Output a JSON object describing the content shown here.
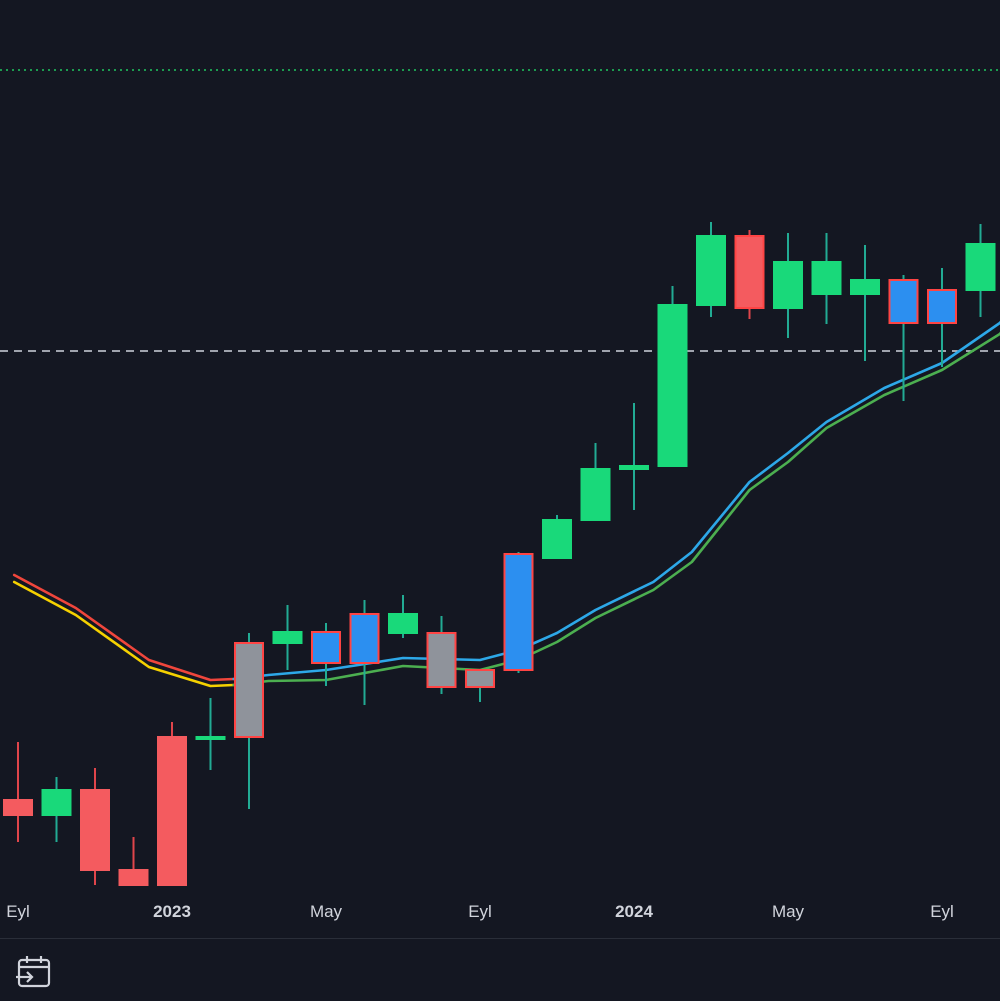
{
  "chart_data": {
    "type": "candlestick",
    "x_tick_labels": [
      "Eyl",
      "2023",
      "May",
      "Eyl",
      "2024",
      "May",
      "Eyl"
    ],
    "x_tick_index": [
      0,
      4,
      8,
      12,
      16,
      20,
      24
    ],
    "y_range": [
      0,
      1000
    ],
    "horizontal_lines": [
      {
        "name": "dotted-level",
        "value": 930,
        "style": "dotted",
        "color": "#1ec860"
      },
      {
        "name": "dashed-level",
        "value": 649,
        "style": "dashed",
        "color": "#cfd3dc"
      }
    ],
    "candles": [
      {
        "o": 185,
        "h": 258,
        "l": 158,
        "c": 200,
        "color": "red"
      },
      {
        "o": 185,
        "h": 223,
        "l": 158,
        "c": 210,
        "color": "green"
      },
      {
        "o": 210,
        "h": 232,
        "l": 115,
        "c": 130,
        "color": "red"
      },
      {
        "o": 130,
        "h": 163,
        "l": 115,
        "c": 115,
        "color": "red"
      },
      {
        "o": 115,
        "h": 278,
        "l": 115,
        "c": 263,
        "color": "red"
      },
      {
        "o": 263,
        "h": 302,
        "l": 230,
        "c": 263,
        "color": "green"
      },
      {
        "o": 263,
        "h": 367,
        "l": 191,
        "c": 357,
        "color": "gray"
      },
      {
        "o": 357,
        "h": 395,
        "l": 330,
        "c": 368,
        "color": "green"
      },
      {
        "o": 368,
        "h": 377,
        "l": 314,
        "c": 337,
        "color": "blue"
      },
      {
        "o": 337,
        "h": 400,
        "l": 295,
        "c": 386,
        "color": "blue"
      },
      {
        "o": 386,
        "h": 405,
        "l": 362,
        "c": 367,
        "color": "green"
      },
      {
        "o": 367,
        "h": 384,
        "l": 306,
        "c": 313,
        "color": "gray"
      },
      {
        "o": 313,
        "h": 330,
        "l": 298,
        "c": 330,
        "color": "gray"
      },
      {
        "o": 330,
        "h": 448,
        "l": 327,
        "c": 446,
        "color": "blue"
      },
      {
        "o": 442,
        "h": 485,
        "l": 442,
        "c": 480,
        "color": "green"
      },
      {
        "o": 480,
        "h": 557,
        "l": 480,
        "c": 531,
        "color": "green"
      },
      {
        "o": 531,
        "h": 597,
        "l": 490,
        "c": 534,
        "color": "green"
      },
      {
        "o": 534,
        "h": 714,
        "l": 534,
        "c": 695,
        "color": "green"
      },
      {
        "o": 695,
        "h": 778,
        "l": 683,
        "c": 764,
        "color": "green"
      },
      {
        "o": 764,
        "h": 770,
        "l": 681,
        "c": 692,
        "color": "red"
      },
      {
        "o": 692,
        "h": 767,
        "l": 662,
        "c": 738,
        "color": "green"
      },
      {
        "o": 738,
        "h": 767,
        "l": 676,
        "c": 706,
        "color": "green"
      },
      {
        "o": 706,
        "h": 755,
        "l": 639,
        "c": 720,
        "color": "green"
      },
      {
        "o": 720,
        "h": 725,
        "l": 599,
        "c": 677,
        "color": "blue"
      },
      {
        "o": 677,
        "h": 732,
        "l": 633,
        "c": 710,
        "color": "blue"
      },
      {
        "o": 710,
        "h": 776,
        "l": 683,
        "c": 756,
        "color": "green"
      }
    ],
    "series": [
      {
        "kind": "line",
        "color": "#f0463c",
        "x": [
          -0.1,
          1.5,
          3.4,
          5.0,
          5.6
        ],
        "y": [
          425,
          392,
          340,
          320,
          321
        ]
      },
      {
        "kind": "line",
        "color": "#f5d100",
        "x": [
          -0.1,
          1.5,
          3.4,
          5.0,
          5.6
        ],
        "y": [
          418,
          385,
          333,
          314,
          315
        ]
      },
      {
        "kind": "line",
        "color": "#2da8e8",
        "x": [
          5.6,
          6.5,
          8.0,
          10.0,
          12.0,
          13.0,
          14.0,
          15.0,
          16.5,
          17.5,
          19.0,
          20.0,
          21.0,
          22.5,
          24.0,
          25.5,
          26.0
        ],
        "y": [
          321,
          325,
          330,
          342,
          340,
          350,
          367,
          390,
          418,
          448,
          518,
          547,
          578,
          612,
          637,
          677,
          700
        ]
      },
      {
        "kind": "line",
        "color": "#4caf50",
        "x": [
          5.6,
          6.5,
          8.0,
          10.0,
          12.0,
          13.0,
          14.0,
          15.0,
          16.5,
          17.5,
          19.0,
          20.0,
          21.0,
          22.5,
          24.0,
          25.5,
          26.0
        ],
        "y": [
          315,
          319,
          320,
          334,
          330,
          340,
          358,
          382,
          410,
          438,
          510,
          538,
          572,
          605,
          630,
          666,
          690
        ]
      }
    ]
  },
  "colors": {
    "background": "#141722",
    "green": "#19d97a",
    "red": "#f45b5f",
    "blue": "#2c8ff0",
    "gray": "#8f939b",
    "wick_green": "#22ab94",
    "wick_red": "#e0454b",
    "outline_red": "#ff4444"
  },
  "toolbar": {
    "date_range_icon": "calendar-arrow-icon"
  }
}
